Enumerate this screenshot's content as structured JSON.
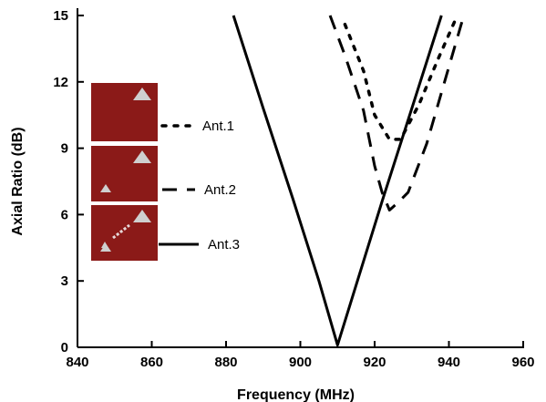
{
  "chart_data": {
    "type": "line",
    "xlabel": "Frequency (MHz)",
    "ylabel": "Axial Ratio (dB)",
    "xlim": [
      840,
      960
    ],
    "ylim": [
      0,
      15
    ],
    "xticks": [
      840,
      860,
      880,
      900,
      920,
      940,
      960
    ],
    "yticks": [
      0,
      3,
      6,
      9,
      12,
      15
    ],
    "grid": false,
    "legend_position": "left, over antenna photographs",
    "series": [
      {
        "name": "Ant.1",
        "style": "dotted",
        "color": "#000000",
        "x": [
          912,
          917,
          920,
          924,
          927,
          932,
          937,
          942
        ],
        "y": [
          14.6,
          12.5,
          10.5,
          9.4,
          9.4,
          11.0,
          13.0,
          14.9
        ]
      },
      {
        "name": "Ant.2",
        "style": "dashed",
        "color": "#000000",
        "x": [
          908,
          912,
          917,
          920,
          922,
          924,
          926,
          929,
          934,
          939,
          944
        ],
        "y": [
          15.0,
          13.2,
          10.7,
          8.2,
          7.0,
          6.2,
          6.5,
          7.0,
          9.2,
          12.1,
          15.0
        ]
      },
      {
        "name": "Ant.3",
        "style": "solid",
        "color": "#000000",
        "x": [
          882,
          890,
          898,
          905,
          910,
          915,
          922,
          930,
          938
        ],
        "y": [
          15.0,
          10.8,
          6.7,
          3.0,
          0.1,
          2.8,
          6.6,
          10.8,
          15.0
        ]
      }
    ],
    "antenna_images": [
      {
        "antenna": "Ant.1",
        "color": "#8b1a18",
        "features": "single corner triangle"
      },
      {
        "antenna": "Ant.2",
        "color": "#8b1a18",
        "features": "two corner triangles"
      },
      {
        "antenna": "Ant.3",
        "color": "#8b1a18",
        "features": "two corner triangles with diagonal strip"
      }
    ]
  }
}
